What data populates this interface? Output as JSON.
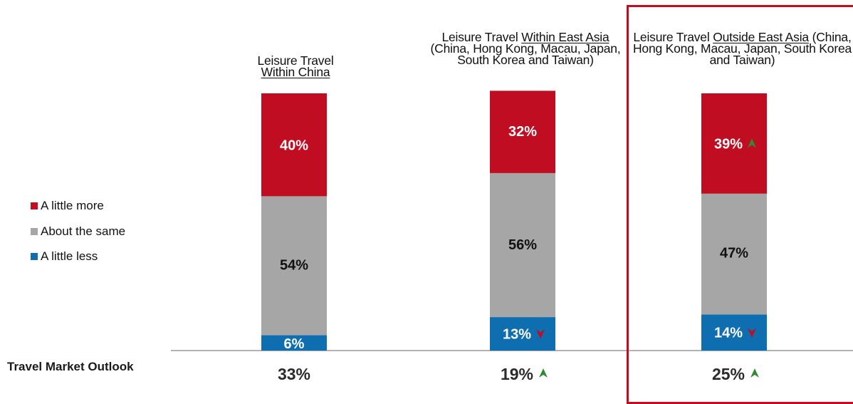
{
  "chart_data": {
    "type": "bar",
    "stacked": true,
    "orientation": "vertical",
    "ylim": [
      0,
      100
    ],
    "categories": [
      {
        "title_plain": "Leisure Travel",
        "title_underlined": "Within China",
        "title_rest": "",
        "outlook": "33%",
        "outlook_trend": "none"
      },
      {
        "title_plain": "Leisure Travel",
        "title_underlined": "Within East Asia",
        "title_rest": "(China, Hong Kong, Macau, Japan, South Korea and Taiwan)",
        "outlook": "19%",
        "outlook_trend": "up"
      },
      {
        "title_plain": "Leisure Travel",
        "title_underlined": "Outside East Asia",
        "title_rest": "(China, Hong Kong, Macau, Japan, South Korea and Taiwan)",
        "outlook": "25%",
        "outlook_trend": "up"
      }
    ],
    "series": [
      {
        "name": "A little less",
        "color": "#0f6eb0",
        "values": [
          6,
          13,
          14
        ],
        "labels": [
          "6%",
          "13%",
          "14%"
        ],
        "trends": [
          "none",
          "down",
          "down"
        ]
      },
      {
        "name": "About the same",
        "color": "#a6a6a6",
        "values": [
          54,
          56,
          47
        ],
        "labels": [
          "54%",
          "56%",
          "47%"
        ],
        "trends": [
          "none",
          "none",
          "none"
        ]
      },
      {
        "name": "A little more",
        "color": "#c00d22",
        "values": [
          40,
          32,
          39
        ],
        "labels": [
          "40%",
          "32%",
          "39%"
        ],
        "trends": [
          "none",
          "none",
          "up"
        ]
      }
    ],
    "legend": {
      "placement": "left",
      "order": [
        "A little more",
        "About the same",
        "A little less"
      ]
    },
    "row_label": "Travel Market Outlook",
    "highlight_color": "#c00d22",
    "trend_up_color": "#2e8b2e",
    "trend_down_color": "#c00d22"
  }
}
